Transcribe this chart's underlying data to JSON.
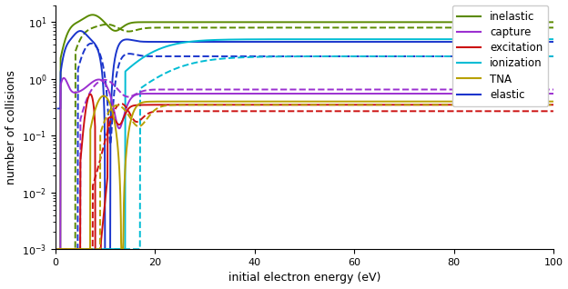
{
  "xlabel": "initial electron energy (eV)",
  "ylabel": "number of collisions",
  "xlim": [
    0,
    100
  ],
  "ylim": [
    0.001,
    20
  ],
  "colors": {
    "inelastic": "#5a8a00",
    "capture": "#9b30d0",
    "excitation": "#cc1111",
    "ionization": "#00bcd4",
    "TNA": "#b8a000",
    "elastic": "#1a35cc"
  },
  "legend_labels": [
    "inelastic",
    "capture",
    "excitation",
    "ionization",
    "TNA",
    "elastic"
  ]
}
